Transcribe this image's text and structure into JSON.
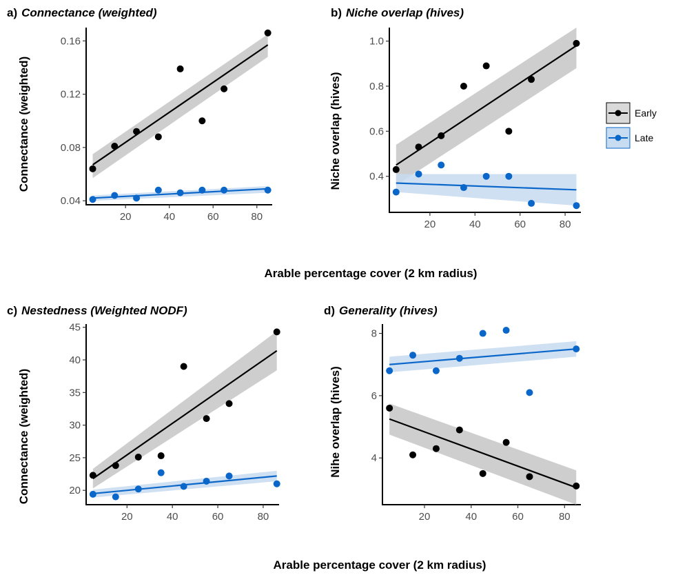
{
  "colors": {
    "early": "#000000",
    "late": "#0a67c9",
    "early_band": "#bdbdbd",
    "late_band": "#c7dbf1"
  },
  "shared_xlabel_top": "Arable percentage cover (2 km radius)",
  "shared_xlabel_bottom": "Arable percentage cover (2 km radius)",
  "legend": {
    "items": [
      "Early",
      "Late"
    ]
  },
  "chart_data": [
    {
      "type": "scatter",
      "panel_letter": "a)",
      "title": "Connectance (weighted)",
      "ylabel": "Connectance (weighted)",
      "xlim": [
        2,
        87
      ],
      "ylim": [
        0.037,
        0.17
      ],
      "xticks": [
        20,
        40,
        60,
        80
      ],
      "yticks": [
        0.04,
        0.08,
        0.12,
        0.16
      ],
      "ytick_labels": [
        "0.04",
        "0.08",
        "0.12",
        "0.16"
      ],
      "series": [
        {
          "name": "Early",
          "x": [
            5,
            15,
            25,
            35,
            45,
            55,
            65,
            85
          ],
          "y": [
            0.064,
            0.081,
            0.092,
            0.088,
            0.139,
            0.1,
            0.124,
            0.166
          ],
          "fit": [
            0.067,
            0.157
          ],
          "band_lo": [
            0.057,
            0.148
          ],
          "band_hi": [
            0.075,
            0.165
          ]
        },
        {
          "name": "Late",
          "x": [
            5,
            15,
            25,
            35,
            45,
            55,
            65,
            85
          ],
          "y": [
            0.041,
            0.044,
            0.042,
            0.048,
            0.046,
            0.048,
            0.048,
            0.048
          ],
          "fit": [
            0.042,
            0.049
          ],
          "band_lo": [
            0.04,
            0.046
          ],
          "band_hi": [
            0.044,
            0.051
          ]
        }
      ]
    },
    {
      "type": "scatter",
      "panel_letter": "b)",
      "title": "Niche overlap (hives)",
      "ylabel": "Niche overlap (hives)",
      "xlim": [
        2,
        87
      ],
      "ylim": [
        0.24,
        1.06
      ],
      "xticks": [
        20,
        40,
        60,
        80
      ],
      "yticks": [
        0.4,
        0.6,
        0.8,
        1.0
      ],
      "ytick_labels": [
        "0.4",
        "0.6",
        "0.8",
        "1.0"
      ],
      "series": [
        {
          "name": "Early",
          "x": [
            5,
            15,
            25,
            35,
            45,
            55,
            65,
            85
          ],
          "y": [
            0.43,
            0.53,
            0.58,
            0.8,
            0.89,
            0.6,
            0.83,
            0.99
          ],
          "fit": [
            0.45,
            0.98
          ],
          "band_lo": [
            0.36,
            0.88
          ],
          "band_hi": [
            0.54,
            1.06
          ]
        },
        {
          "name": "Late",
          "x": [
            5,
            15,
            25,
            35,
            45,
            55,
            65,
            85
          ],
          "y": [
            0.33,
            0.41,
            0.45,
            0.35,
            0.4,
            0.4,
            0.28,
            0.27
          ],
          "fit": [
            0.37,
            0.34
          ],
          "band_lo": [
            0.33,
            0.27
          ],
          "band_hi": [
            0.41,
            0.41
          ]
        }
      ]
    },
    {
      "type": "scatter",
      "panel_letter": "c)",
      "title": "Nestedness (Weighted NODF)",
      "ylabel": "Connectance (weighted)",
      "xlim": [
        2,
        87
      ],
      "ylim": [
        17.8,
        45.5
      ],
      "xticks": [
        20,
        40,
        60,
        80
      ],
      "yticks": [
        20,
        25,
        30,
        35,
        40,
        45
      ],
      "ytick_labels": [
        "20",
        "25",
        "30",
        "35",
        "40",
        "45"
      ],
      "series": [
        {
          "name": "Early",
          "x": [
            5,
            15,
            25,
            35,
            45,
            55,
            65,
            86
          ],
          "y": [
            22.3,
            23.8,
            25.1,
            25.3,
            39.0,
            31.0,
            33.3,
            44.3
          ],
          "fit": [
            21.8,
            41.4
          ],
          "band_lo": [
            20.3,
            38.4
          ],
          "band_hi": [
            23.3,
            44.4
          ]
        },
        {
          "name": "Late",
          "x": [
            5,
            15,
            25,
            35,
            45,
            55,
            65,
            86
          ],
          "y": [
            19.4,
            19.0,
            20.2,
            22.7,
            20.6,
            21.4,
            22.2,
            21.0
          ],
          "fit": [
            19.5,
            22.2
          ],
          "band_lo": [
            18.9,
            21.4
          ],
          "band_hi": [
            20.1,
            23.0
          ]
        }
      ]
    },
    {
      "type": "scatter",
      "panel_letter": "d)",
      "title": "Generality (hives)",
      "ylabel": "Nihe overlap (hives)",
      "xlim": [
        2,
        87
      ],
      "ylim": [
        2.5,
        8.3
      ],
      "xticks": [
        20,
        40,
        60,
        80
      ],
      "yticks": [
        4,
        6,
        8
      ],
      "ytick_labels": [
        "4",
        "6",
        "8"
      ],
      "series": [
        {
          "name": "Late",
          "x": [
            5,
            15,
            25,
            35,
            45,
            55,
            65,
            85
          ],
          "y": [
            6.8,
            7.3,
            6.8,
            7.2,
            8.0,
            8.1,
            6.1,
            7.5
          ],
          "fit": [
            7.0,
            7.5
          ],
          "band_lo": [
            6.75,
            7.25
          ],
          "band_hi": [
            7.25,
            7.75
          ]
        },
        {
          "name": "Early",
          "x": [
            5,
            15,
            25,
            35,
            45,
            55,
            65,
            85
          ],
          "y": [
            5.6,
            4.1,
            4.3,
            4.9,
            3.5,
            4.5,
            3.4,
            3.1
          ],
          "fit": [
            5.25,
            3.05
          ],
          "band_lo": [
            4.75,
            2.5
          ],
          "band_hi": [
            5.75,
            3.6
          ]
        }
      ]
    }
  ]
}
